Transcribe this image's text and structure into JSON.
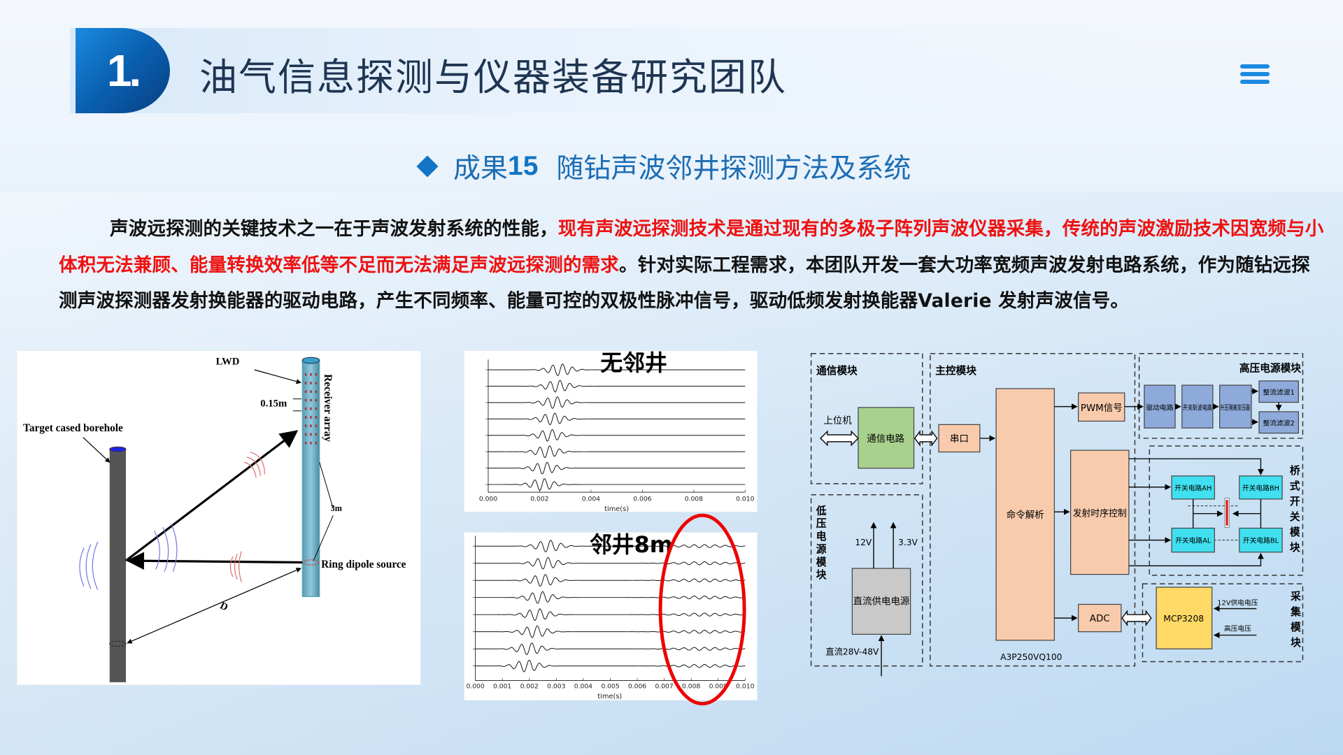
{
  "header": {
    "number": "1.",
    "title": "油气信息探测与仪器装备研究团队",
    "menu_icon": "hamburger-menu-icon"
  },
  "subtitle": {
    "label": "成果",
    "number": "15",
    "text": "随钻声波邻井探测方法及系统"
  },
  "paragraph": [
    {
      "text": "声波远探测的关键技术之一在于声波发射系统的性能，",
      "color": "#111111"
    },
    {
      "text": "现有声波远探测技术是通过现有的多极子阵列声波仪器采集，传统的声波激励技术因宽频与小体积无法兼顾、能量转换效率低等不足而无法满足声波远探测的需求",
      "color": "#ee1111"
    },
    {
      "text": "。针对实际工程需求，本团队开发一套大功率宽频声波发射电路系统，作为随钻远探测声波探测器发射换能器的驱动电路，产生不同频率、能量可控的双极性脉冲信号，驱动低频发射换能器Valerie 发射声波信号。",
      "color": "#111111"
    }
  ],
  "schematic": {
    "lwd": "LWD",
    "spacing": "0.15m",
    "target": "Target cased borehole",
    "receiver": "Receiver array",
    "distance_3m": "3m",
    "source": "Ring dipole source",
    "d": "D"
  },
  "chart_data": [
    {
      "type": "line",
      "title": "无邻井",
      "xlabel": "time(s)",
      "xlim": [
        0.0,
        0.01
      ],
      "xticks": [
        "0.000",
        "0.002",
        "0.004",
        "0.006",
        "0.008",
        "0.010"
      ],
      "traces": 8,
      "direct_arrival_centers_s": [
        0.0028,
        0.0027,
        0.0026,
        0.0025,
        0.0024,
        0.0023,
        0.0022,
        0.0021
      ],
      "reflection": false
    },
    {
      "type": "line",
      "title": "邻井8m",
      "xlabel": "time(s)",
      "xlim": [
        0.0,
        0.01
      ],
      "xticks": [
        "0.000",
        "0.001",
        "0.002",
        "0.003",
        "0.004",
        "0.005",
        "0.006",
        "0.007",
        "0.008",
        "0.009",
        "0.010"
      ],
      "traces": 8,
      "direct_arrival_centers_s": [
        0.0027,
        0.0026,
        0.0025,
        0.0024,
        0.0023,
        0.0022,
        0.002,
        0.0019
      ],
      "reflection": true,
      "reflection_center_s": 0.0084,
      "highlight_color": "#ee0000"
    }
  ],
  "block_diagram": {
    "modules": {
      "comm": "通信模块",
      "main": "主控模块",
      "hv": "高压电源模块",
      "lv": "低压电源模块",
      "bridge": "桥式开关模块",
      "acq": "采集模块"
    },
    "blocks": {
      "host": "上位机",
      "comm_circuit": "通信电路",
      "serial": "串口",
      "cmd": "命令解析",
      "pwm": "PWM信号",
      "timing": "发射时序控制",
      "adc": "ADC",
      "chip": "A3P250VQ100",
      "dc_supply": "直流供电电源",
      "v12": "12V",
      "v33": "3.3V",
      "dc_in": "直流28V-48V",
      "driver": "驱动电路",
      "chopper": "开关斩波电路",
      "transformer": "升压隔离变压器",
      "rect1": "整流滤波1",
      "rect2": "整流滤波2",
      "ah": "开关电路AH",
      "bh": "开关电路BH",
      "al": "开关电路AL",
      "bl": "开关电路BL",
      "mcp": "MCP3208",
      "v12_supply": "12V供电电压",
      "hv_in": "高压电压"
    },
    "colors": {
      "orange": "#f8cbad",
      "green": "#a9d18e",
      "gray": "#c9c9c9",
      "blue": "#8eaadb",
      "cyan": "#40e0f0",
      "yellow": "#ffd966"
    }
  }
}
